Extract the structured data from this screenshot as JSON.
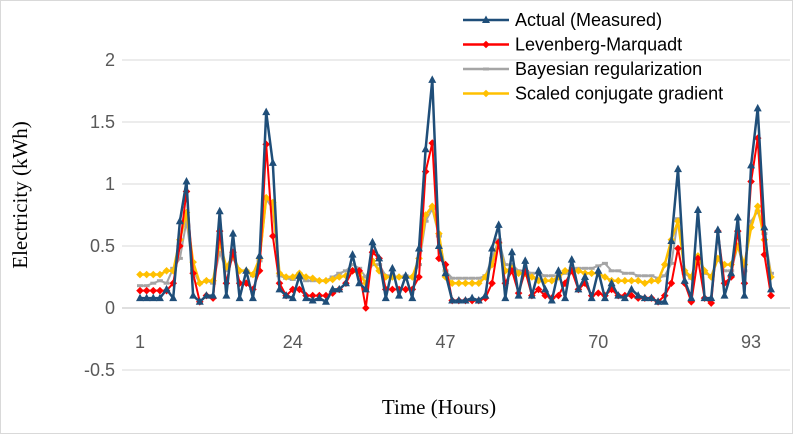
{
  "chart_data": {
    "type": "line",
    "xlabel": "Time (Hours)",
    "ylabel": "Electricity (kWh)",
    "xlim": [
      1,
      96
    ],
    "ylim": [
      -0.5,
      2
    ],
    "y_ticks": [
      -0.5,
      0,
      0.5,
      1,
      1.5,
      2
    ],
    "y_tick_labels": [
      "-0.5",
      "0",
      "0.5",
      "1",
      "1.5",
      "2"
    ],
    "x_ticks": [
      1,
      24,
      47,
      70,
      93
    ],
    "x_tick_labels": [
      "1",
      "24",
      "47",
      "70",
      "93"
    ],
    "grid": "horizontal",
    "legend_position": "top-right",
    "x": [
      1,
      2,
      3,
      4,
      5,
      6,
      7,
      8,
      9,
      10,
      11,
      12,
      13,
      14,
      15,
      16,
      17,
      18,
      19,
      20,
      21,
      22,
      23,
      24,
      25,
      26,
      27,
      28,
      29,
      30,
      31,
      32,
      33,
      34,
      35,
      36,
      37,
      38,
      39,
      40,
      41,
      42,
      43,
      44,
      45,
      46,
      47,
      48,
      49,
      50,
      51,
      52,
      53,
      54,
      55,
      56,
      57,
      58,
      59,
      60,
      61,
      62,
      63,
      64,
      65,
      66,
      67,
      68,
      69,
      70,
      71,
      72,
      73,
      74,
      75,
      76,
      77,
      78,
      79,
      80,
      81,
      82,
      83,
      84,
      85,
      86,
      87,
      88,
      89,
      90,
      91,
      92,
      93,
      94,
      95,
      96
    ],
    "series": [
      {
        "name": "Actual (Measured)",
        "color": "#1f4e79",
        "marker": "triangle",
        "values": [
          0.08,
          0.08,
          0.08,
          0.08,
          0.15,
          0.08,
          0.7,
          1.02,
          0.1,
          0.05,
          0.1,
          0.1,
          0.78,
          0.1,
          0.6,
          0.08,
          0.3,
          0.08,
          0.42,
          1.58,
          1.17,
          0.15,
          0.1,
          0.08,
          0.26,
          0.08,
          0.06,
          0.08,
          0.05,
          0.15,
          0.15,
          0.2,
          0.43,
          0.2,
          0.15,
          0.53,
          0.4,
          0.08,
          0.32,
          0.1,
          0.26,
          0.08,
          0.48,
          1.28,
          1.84,
          0.5,
          0.28,
          0.06,
          0.06,
          0.06,
          0.08,
          0.06,
          0.1,
          0.48,
          0.67,
          0.08,
          0.45,
          0.1,
          0.38,
          0.1,
          0.3,
          0.15,
          0.06,
          0.3,
          0.08,
          0.39,
          0.15,
          0.25,
          0.08,
          0.3,
          0.08,
          0.2,
          0.1,
          0.08,
          0.15,
          0.1,
          0.08,
          0.08,
          0.05,
          0.05,
          0.54,
          1.12,
          0.22,
          0.08,
          0.79,
          0.08,
          0.08,
          0.63,
          0.1,
          0.28,
          0.73,
          0.1,
          1.15,
          1.61,
          0.65,
          0.15
        ]
      },
      {
        "name": "Levenberg-Marquadt",
        "color": "#ff0000",
        "marker": "diamond",
        "values": [
          0.14,
          0.14,
          0.14,
          0.14,
          0.14,
          0.2,
          0.5,
          0.94,
          0.28,
          0.05,
          0.1,
          0.08,
          0.62,
          0.2,
          0.45,
          0.2,
          0.2,
          0.15,
          0.3,
          1.32,
          0.58,
          0.2,
          0.1,
          0.15,
          0.15,
          0.1,
          0.1,
          0.1,
          0.1,
          0.12,
          0.15,
          0.2,
          0.3,
          0.3,
          0.0,
          0.45,
          0.4,
          0.15,
          0.15,
          0.15,
          0.15,
          0.15,
          0.25,
          1.1,
          1.33,
          0.4,
          0.35,
          0.06,
          0.06,
          0.06,
          0.06,
          0.06,
          0.08,
          0.2,
          0.53,
          0.2,
          0.3,
          0.12,
          0.3,
          0.1,
          0.15,
          0.1,
          0.08,
          0.1,
          0.2,
          0.3,
          0.15,
          0.2,
          0.1,
          0.12,
          0.1,
          0.15,
          0.1,
          0.1,
          0.1,
          0.08,
          0.08,
          0.08,
          0.05,
          0.1,
          0.2,
          0.48,
          0.2,
          0.05,
          0.4,
          0.08,
          0.04,
          0.62,
          0.2,
          0.25,
          0.62,
          0.2,
          1.02,
          1.37,
          0.43,
          0.1
        ]
      },
      {
        "name": "Bayesian regularization",
        "color": "#a5a5a5",
        "marker": "dash",
        "values": [
          0.18,
          0.18,
          0.2,
          0.22,
          0.2,
          0.32,
          0.4,
          0.7,
          0.3,
          0.2,
          0.22,
          0.2,
          0.45,
          0.3,
          0.4,
          0.3,
          0.3,
          0.26,
          0.38,
          0.88,
          0.8,
          0.26,
          0.24,
          0.23,
          0.25,
          0.22,
          0.22,
          0.22,
          0.22,
          0.25,
          0.28,
          0.3,
          0.35,
          0.32,
          0.25,
          0.35,
          0.35,
          0.26,
          0.26,
          0.25,
          0.26,
          0.25,
          0.35,
          0.7,
          0.8,
          0.58,
          0.3,
          0.24,
          0.24,
          0.24,
          0.24,
          0.24,
          0.26,
          0.4,
          0.55,
          0.35,
          0.35,
          0.3,
          0.3,
          0.28,
          0.28,
          0.26,
          0.26,
          0.26,
          0.28,
          0.32,
          0.32,
          0.32,
          0.32,
          0.34,
          0.36,
          0.3,
          0.3,
          0.28,
          0.28,
          0.26,
          0.26,
          0.26,
          0.24,
          0.26,
          0.36,
          0.72,
          0.28,
          0.24,
          0.42,
          0.28,
          0.26,
          0.4,
          0.3,
          0.3,
          0.5,
          0.3,
          0.7,
          0.78,
          0.6,
          0.28
        ]
      },
      {
        "name": "Scaled conjugate gradient",
        "color": "#ffc000",
        "marker": "diamond",
        "values": [
          0.27,
          0.27,
          0.27,
          0.27,
          0.3,
          0.3,
          0.55,
          0.77,
          0.37,
          0.2,
          0.22,
          0.22,
          0.53,
          0.33,
          0.42,
          0.3,
          0.3,
          0.27,
          0.4,
          0.89,
          0.85,
          0.28,
          0.25,
          0.25,
          0.28,
          0.25,
          0.24,
          0.22,
          0.22,
          0.23,
          0.25,
          0.26,
          0.3,
          0.28,
          0.2,
          0.38,
          0.3,
          0.25,
          0.25,
          0.25,
          0.25,
          0.25,
          0.4,
          0.75,
          0.82,
          0.6,
          0.25,
          0.2,
          0.2,
          0.2,
          0.2,
          0.2,
          0.25,
          0.35,
          0.52,
          0.3,
          0.32,
          0.28,
          0.28,
          0.25,
          0.22,
          0.22,
          0.22,
          0.25,
          0.3,
          0.3,
          0.3,
          0.28,
          0.28,
          0.28,
          0.25,
          0.22,
          0.22,
          0.22,
          0.22,
          0.22,
          0.2,
          0.22,
          0.22,
          0.35,
          0.55,
          0.7,
          0.3,
          0.25,
          0.42,
          0.3,
          0.25,
          0.4,
          0.35,
          0.35,
          0.5,
          0.35,
          0.65,
          0.82,
          0.55,
          0.25
        ]
      }
    ]
  }
}
